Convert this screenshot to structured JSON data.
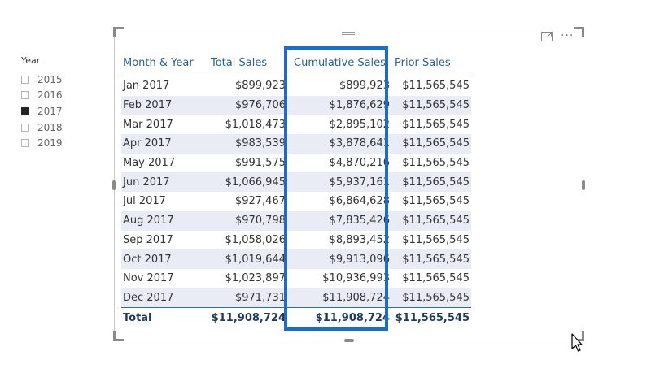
{
  "slicer": {
    "title": "Year",
    "items": [
      {
        "label": "2015",
        "checked": false
      },
      {
        "label": "2016",
        "checked": false
      },
      {
        "label": "2017",
        "checked": true
      },
      {
        "label": "2018",
        "checked": false
      },
      {
        "label": "2019",
        "checked": false
      }
    ]
  },
  "table": {
    "headers": {
      "month": "Month & Year",
      "total": "Total Sales",
      "cumulative": "Cumulative Sales",
      "prior": "Prior Sales"
    },
    "rows": [
      {
        "month": "Jan 2017",
        "total": "$899,923",
        "cumulative": "$899,923",
        "prior": "$11,565,545"
      },
      {
        "month": "Feb 2017",
        "total": "$976,706",
        "cumulative": "$1,876,629",
        "prior": "$11,565,545"
      },
      {
        "month": "Mar 2017",
        "total": "$1,018,473",
        "cumulative": "$2,895,102",
        "prior": "$11,565,545"
      },
      {
        "month": "Apr 2017",
        "total": "$983,539",
        "cumulative": "$3,878,641",
        "prior": "$11,565,545"
      },
      {
        "month": "May 2017",
        "total": "$991,575",
        "cumulative": "$4,870,216",
        "prior": "$11,565,545"
      },
      {
        "month": "Jun 2017",
        "total": "$1,066,945",
        "cumulative": "$5,937,161",
        "prior": "$11,565,545"
      },
      {
        "month": "Jul 2017",
        "total": "$927,467",
        "cumulative": "$6,864,628",
        "prior": "$11,565,545"
      },
      {
        "month": "Aug 2017",
        "total": "$970,798",
        "cumulative": "$7,835,426",
        "prior": "$11,565,545"
      },
      {
        "month": "Sep 2017",
        "total": "$1,058,026",
        "cumulative": "$8,893,452",
        "prior": "$11,565,545"
      },
      {
        "month": "Oct 2017",
        "total": "$1,019,644",
        "cumulative": "$9,913,096",
        "prior": "$11,565,545"
      },
      {
        "month": "Nov 2017",
        "total": "$1,023,897",
        "cumulative": "$10,936,993",
        "prior": "$11,565,545"
      },
      {
        "month": "Dec 2017",
        "total": "$971,731",
        "cumulative": "$11,908,724",
        "prior": "$11,565,545"
      }
    ],
    "totals": {
      "label": "Total",
      "total": "$11,908,724",
      "cumulative": "$11,908,724",
      "prior": "$11,565,545"
    }
  },
  "visual_header": {
    "focus_icon": "focus-mode-icon",
    "more_icon": "more-options-icon",
    "more_glyph": "···"
  },
  "colors": {
    "header_text": "#2d5f8a",
    "row_alt": "#e9ecf5",
    "highlight": "#1f6cc4",
    "checked": "#222222"
  }
}
